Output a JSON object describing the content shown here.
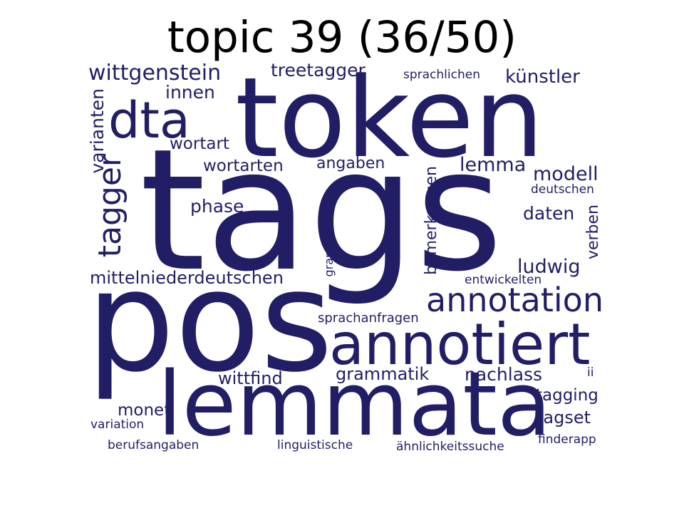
{
  "title": "topic 39 (36/50)",
  "word_color": "#221e66",
  "words": [
    {
      "text": "token"
    },
    {
      "text": "tags"
    },
    {
      "text": "pos"
    },
    {
      "text": "lemmata"
    },
    {
      "text": "annotiert"
    },
    {
      "text": "dta"
    },
    {
      "text": "annotation"
    },
    {
      "text": "tagger"
    },
    {
      "text": "wittgenstein"
    },
    {
      "text": "treetagger"
    },
    {
      "text": "künstler"
    },
    {
      "text": "sprachlichen"
    },
    {
      "text": "innen"
    },
    {
      "text": "varianten"
    },
    {
      "text": "wortart"
    },
    {
      "text": "wortarten"
    },
    {
      "text": "angaben"
    },
    {
      "text": "lemma"
    },
    {
      "text": "modell"
    },
    {
      "text": "deutschen"
    },
    {
      "text": "phase"
    },
    {
      "text": "daten"
    },
    {
      "text": "bemerkungen"
    },
    {
      "text": "grammatischen"
    },
    {
      "text": "verben"
    },
    {
      "text": "ludwig"
    },
    {
      "text": "mittelniederdeutschen"
    },
    {
      "text": "entwickelten"
    },
    {
      "text": "sprachanfragen"
    },
    {
      "text": "wittfind"
    },
    {
      "text": "grammatik"
    },
    {
      "text": "nachlass"
    },
    {
      "text": "ii"
    },
    {
      "text": "tagging"
    },
    {
      "text": "monet"
    },
    {
      "text": "tagset"
    },
    {
      "text": "variation"
    },
    {
      "text": "finderapp"
    },
    {
      "text": "berufsangaben"
    },
    {
      "text": "linguistische"
    },
    {
      "text": "ähnlichkeitssuche"
    }
  ]
}
